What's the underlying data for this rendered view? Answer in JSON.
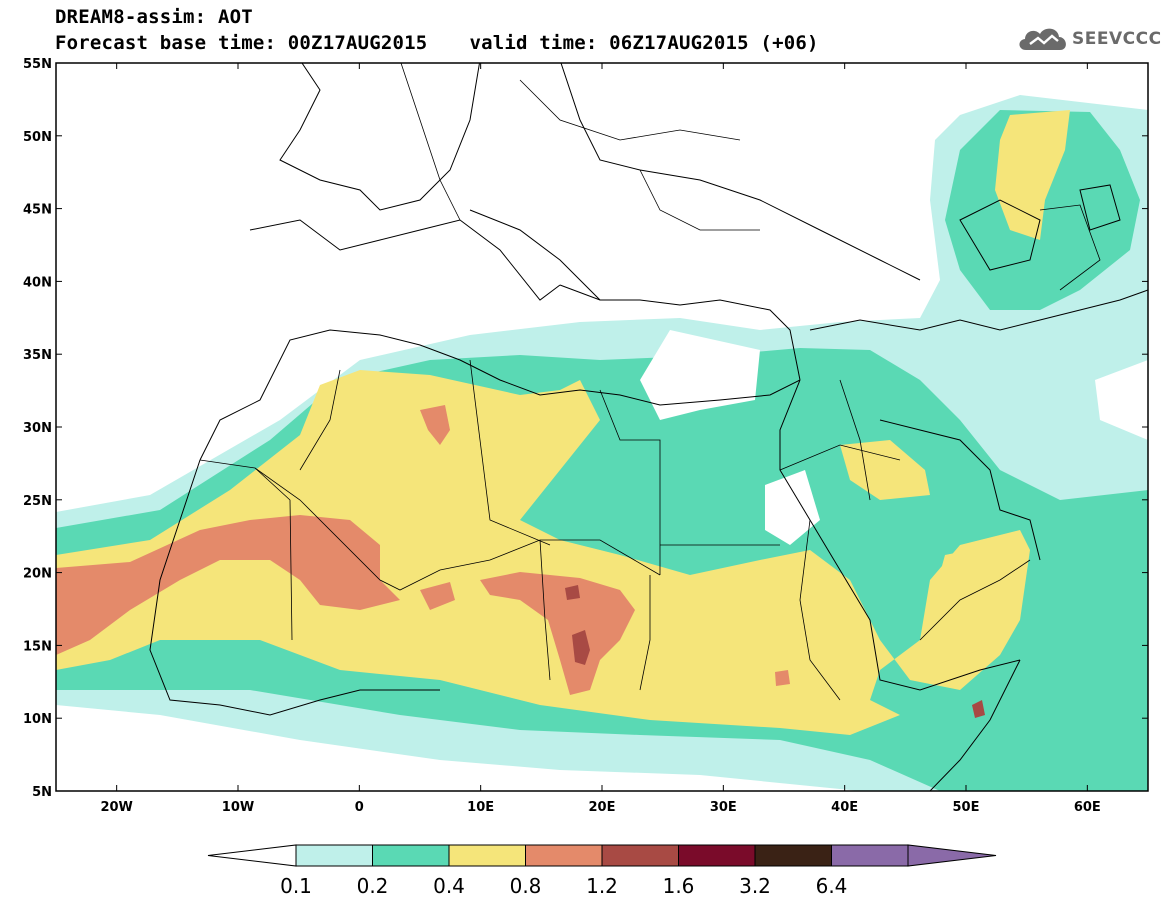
{
  "header": {
    "title": "DREAM8-assim: AOT",
    "base_time": "Forecast base time: 00Z17AUG2015",
    "valid_time": "valid time: 06Z17AUG2015 (+06)"
  },
  "logo": {
    "text": "SEEVCCC",
    "icon": "cloud-icon"
  },
  "map": {
    "lon_range": [
      -25,
      65
    ],
    "lat_range": [
      5,
      55
    ],
    "lat_labels": [
      "55N",
      "50N",
      "45N",
      "40N",
      "35N",
      "30N",
      "25N",
      "20N",
      "15N",
      "10N",
      "5N"
    ],
    "lon_labels": [
      "20W",
      "10W",
      "0",
      "10E",
      "20E",
      "30E",
      "40E",
      "50E",
      "60E"
    ]
  },
  "colorbar": {
    "labels": [
      "0.1",
      "0.2",
      "0.4",
      "0.8",
      "1.2",
      "1.6",
      "3.2",
      "6.4"
    ],
    "colors": [
      "#ffffff",
      "#bff0ea",
      "#5ad9b4",
      "#f5e57a",
      "#e48a6a",
      "#a84a44",
      "#7a0b2a",
      "#3a2215",
      "#8a6aa8"
    ]
  }
}
